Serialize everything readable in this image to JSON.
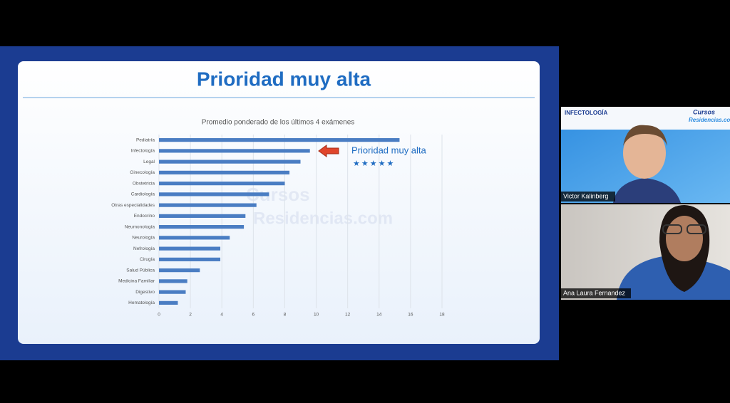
{
  "slide": {
    "title": "Prioridad muy alta",
    "watermark": [
      "Cursos",
      "Residencias.com"
    ]
  },
  "chart_data": {
    "type": "hbar",
    "title": "Promedio ponderado de los últimos 4 exámenes",
    "categories": [
      "Pediatría",
      "Infectología",
      "Legal",
      "Ginecología",
      "Obstetricia",
      "Cardiología",
      "Otras especialidades",
      "Endocrino",
      "Neumonología",
      "Neurología",
      "Nefrología",
      "Cirugía",
      "Salud Pública",
      "Medicina Familiar",
      "Digestivo",
      "Hematología"
    ],
    "values": [
      15.3,
      9.6,
      9.0,
      8.3,
      8.0,
      7.0,
      6.2,
      5.5,
      5.4,
      4.5,
      3.9,
      3.9,
      2.6,
      1.8,
      1.7,
      1.2
    ],
    "color": "#4a7dc3",
    "xlim": [
      0,
      18
    ],
    "xticks": [
      0,
      2,
      4,
      6,
      8,
      10,
      12,
      14,
      16,
      18
    ],
    "grid": true,
    "annotation": {
      "text": "Prioridad muy alta",
      "stars": "★★★★★"
    }
  },
  "participants": [
    {
      "name": "Victor Kalinberg",
      "banner_left": "INFECTOLOGÍA",
      "banner_right": [
        "Cursos",
        "Residencias.com"
      ]
    },
    {
      "name": "Ana Laura Fernandez"
    }
  ]
}
